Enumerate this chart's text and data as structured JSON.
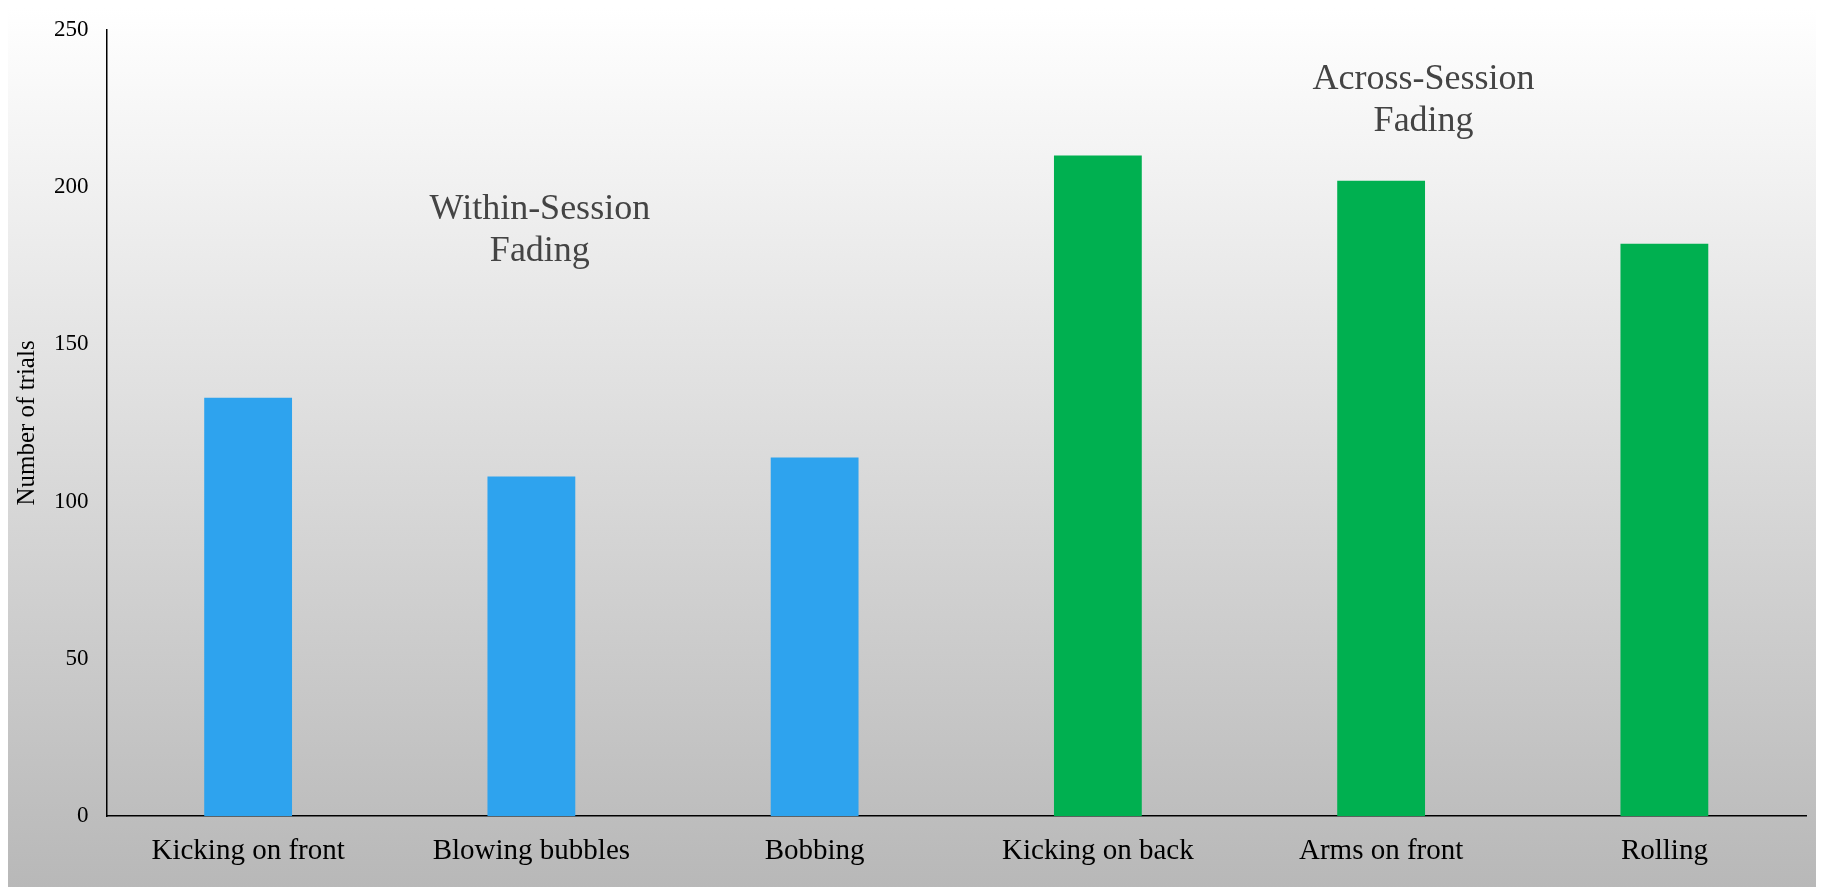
{
  "chart_data": {
    "type": "bar",
    "ylabel": "Number of trials",
    "categories": [
      "Kicking on front",
      "Blowing bubbles",
      "Bobbing",
      "Kicking on back",
      "Arms on front",
      "Rolling"
    ],
    "values": [
      133,
      108,
      114,
      210,
      202,
      182
    ],
    "colors": [
      "#2ea3ee",
      "#2ea3ee",
      "#2ea3ee",
      "#00b050",
      "#00b050",
      "#00b050"
    ],
    "ylim": [
      0,
      250
    ],
    "yticks": [
      0,
      50,
      100,
      150,
      200,
      250
    ],
    "grid": false,
    "legend": false,
    "annotations": [
      "Within-Session Fading",
      "Across-Session Fading"
    ]
  }
}
